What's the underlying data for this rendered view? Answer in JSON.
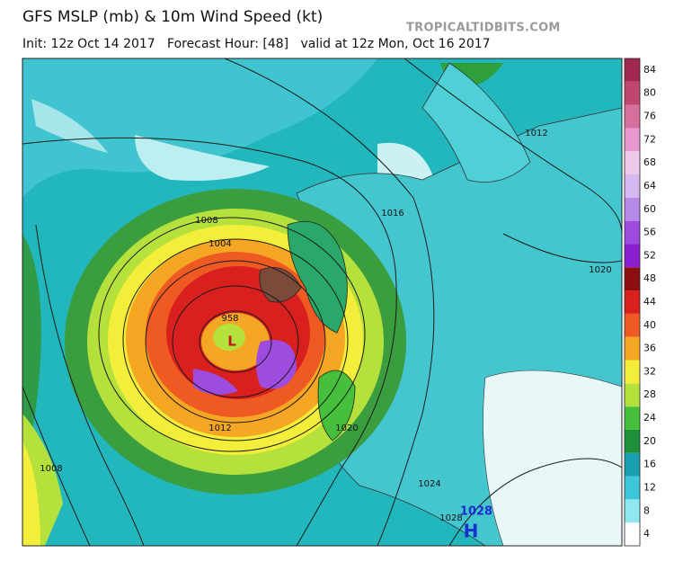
{
  "header": {
    "title": "GFS MSLP (mb) & 10m Wind Speed (kt)",
    "subtitle": "Init: 12z Oct 14 2017   Forecast Hour: [48]   valid at 12z Mon, Oct 16 2017",
    "watermark": "TROPICALTIDBITS.COM"
  },
  "map": {
    "isobar_labels": [
      "1008",
      "1004",
      "958",
      "1012",
      "1008",
      "1016",
      "1012",
      "1020",
      "1020",
      "1024",
      "1028"
    ],
    "low": "L",
    "high_pressure": "1028",
    "high": "H"
  },
  "colorbar": {
    "ticks": [
      4,
      8,
      12,
      16,
      20,
      24,
      28,
      32,
      36,
      40,
      44,
      48,
      52,
      56,
      60,
      64,
      68,
      72,
      76,
      80,
      84
    ],
    "colors": [
      "#ffffff",
      "#8ee8ee",
      "#3cc8d8",
      "#1a9fb0",
      "#1e8f3a",
      "#46c03c",
      "#b4e13c",
      "#f3ee3a",
      "#f5a623",
      "#ef5a23",
      "#d9201f",
      "#8c0e0e",
      "#8a1fd0",
      "#9e4be0",
      "#b68ae8",
      "#d4b8f0",
      "#eec8e8",
      "#e89ad0",
      "#d8709e",
      "#c0466e",
      "#a0284e"
    ]
  }
}
